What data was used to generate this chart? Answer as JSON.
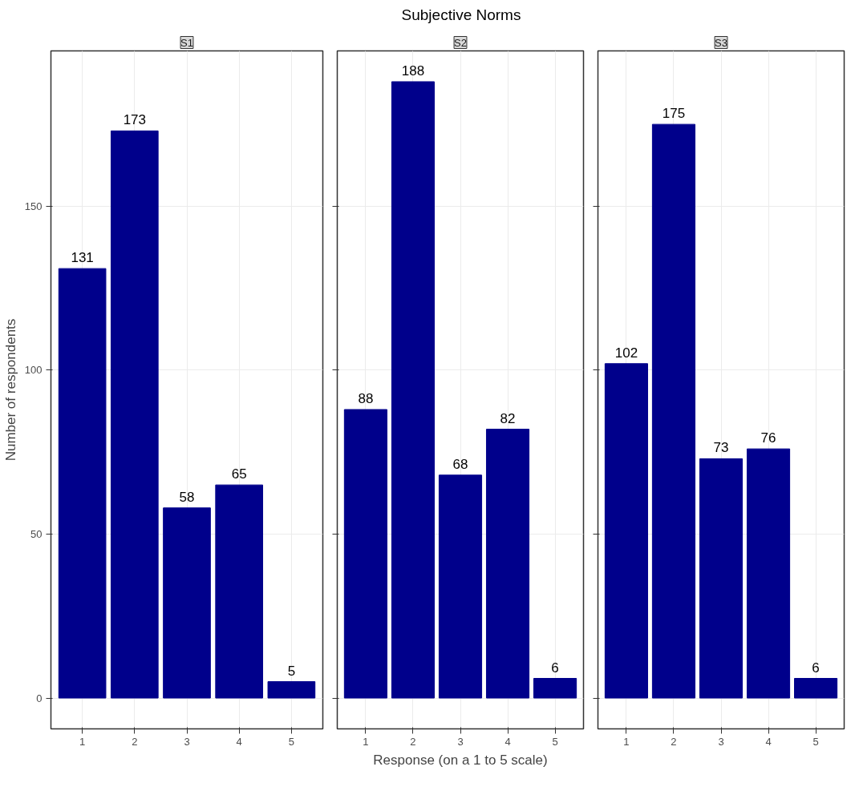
{
  "chart_data": [
    {
      "type": "bar",
      "subtitle": "S1",
      "ylabel": "Number of respondents",
      "categories": [
        "1",
        "2",
        "3",
        "4",
        "5"
      ],
      "values": [
        131,
        173,
        58,
        65,
        5
      ],
      "color": "#00008b",
      "ylim": [
        -9.4,
        197.4
      ],
      "yticks": [
        0,
        50,
        100,
        150
      ],
      "grid": true,
      "data_labels": true
    },
    {
      "type": "bar",
      "title": "Subjective Norms",
      "subtitle": "S2",
      "xlabel": "Response (on a 1 to 5 scale)",
      "categories": [
        "1",
        "2",
        "3",
        "4",
        "5"
      ],
      "values": [
        88,
        188,
        68,
        82,
        6
      ],
      "color": "#00008b",
      "ylim": [
        -9.4,
        197.4
      ],
      "yticks": [
        0,
        50,
        100,
        150
      ],
      "grid": true,
      "data_labels": true,
      "tick_labels": "x"
    },
    {
      "type": "bar",
      "subtitle": "S3",
      "categories": [
        "1",
        "2",
        "3",
        "4",
        "5"
      ],
      "values": [
        102,
        175,
        73,
        76,
        6
      ],
      "color": "#00008b",
      "ylim": [
        -9.4,
        197.4
      ],
      "yticks": [
        0,
        50,
        100,
        150
      ],
      "grid": true,
      "data_labels": true,
      "tick_labels": "x"
    }
  ]
}
